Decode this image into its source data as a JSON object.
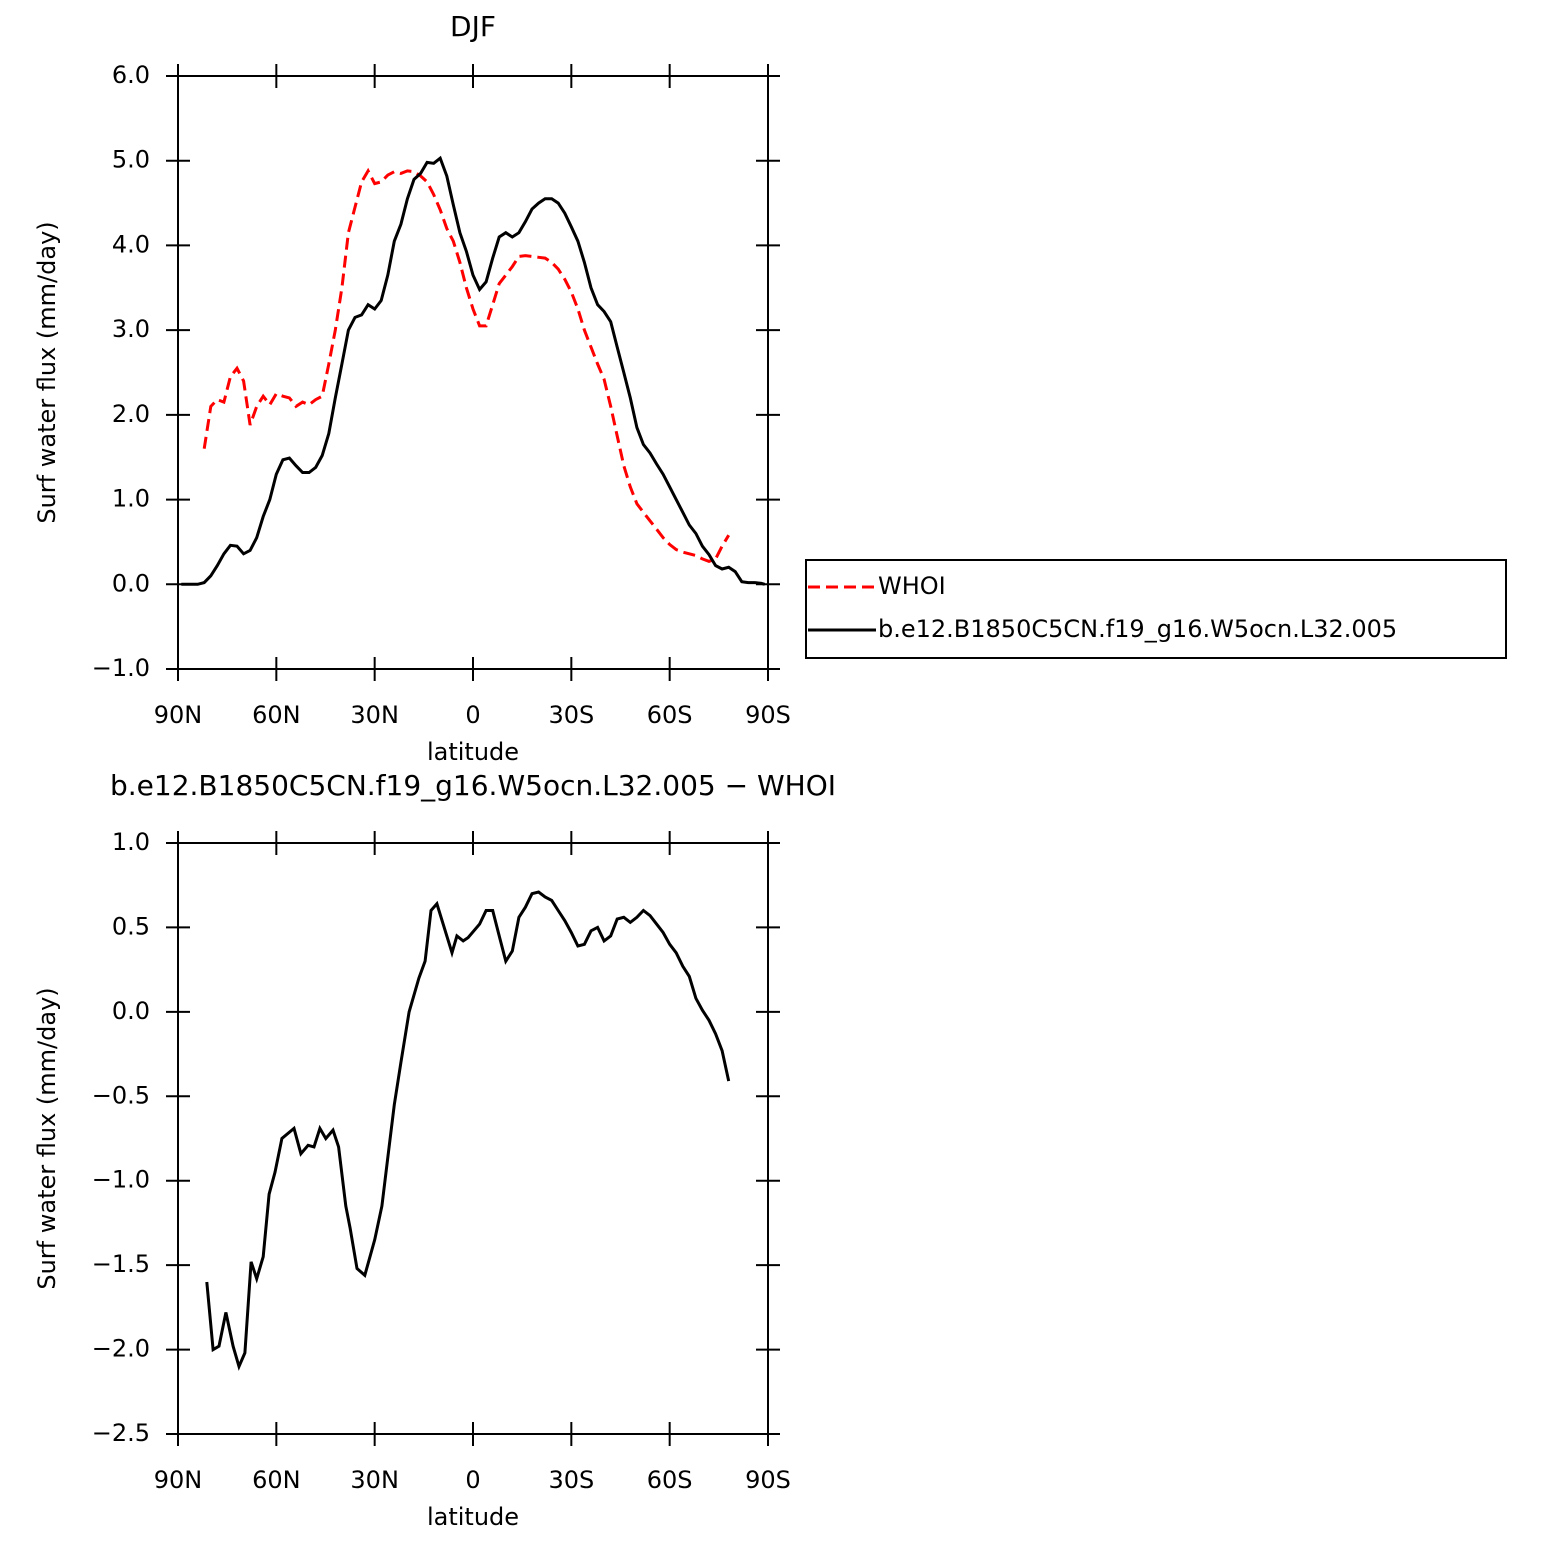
{
  "chart_data": [
    {
      "type": "line",
      "title": "DJF",
      "x_label": "latitude",
      "y_label": "Surf water flux (mm/day)",
      "x": [
        89,
        86,
        84,
        82,
        80,
        78,
        76,
        74,
        72,
        70,
        68,
        66,
        64,
        62,
        60,
        58,
        56,
        54,
        52,
        50,
        48,
        46,
        44,
        42,
        40,
        38,
        36,
        34,
        32,
        30,
        28,
        26,
        24,
        22,
        20,
        18,
        16,
        14,
        12,
        10,
        8,
        6,
        4,
        2,
        0,
        -2,
        -4,
        -6,
        -8,
        -10,
        -12,
        -14,
        -16,
        -18,
        -20,
        -22,
        -24,
        -26,
        -28,
        -30,
        -32,
        -34,
        -36,
        -38,
        -40,
        -42,
        -44,
        -46,
        -48,
        -50,
        -52,
        -54,
        -56,
        -58,
        -60,
        -62,
        -64,
        -66,
        -68,
        -70,
        -72,
        -74,
        -76,
        -78,
        -80,
        -82,
        -84,
        -86,
        -88,
        -89
      ],
      "xlim": [
        90,
        -90
      ],
      "xticks": [
        {
          "value": 90,
          "label": "90N"
        },
        {
          "value": 60,
          "label": "60N"
        },
        {
          "value": 30,
          "label": "30N"
        },
        0,
        {
          "value": -30,
          "label": "30S"
        },
        {
          "value": -60,
          "label": "60S"
        },
        {
          "value": -90,
          "label": "90S"
        }
      ],
      "ylim": [
        -1,
        6
      ],
      "yticks": [
        {
          "value": 6,
          "label": "6.0"
        },
        {
          "value": 5,
          "label": "5.0"
        },
        {
          "value": 4,
          "label": "4.0"
        },
        {
          "value": 3,
          "label": "3.0"
        },
        {
          "value": 2,
          "label": "2.0"
        },
        {
          "value": 1,
          "label": "1.0"
        },
        {
          "value": 0,
          "label": "0.0"
        },
        {
          "value": -1,
          "label": "−1.0"
        }
      ],
      "legend": "right",
      "series": [
        {
          "name": "WHOI",
          "color": "#ff0000",
          "dash": "dashed",
          "values": [
            null,
            null,
            null,
            1.6,
            2.1,
            2.18,
            2.15,
            2.45,
            2.55,
            2.4,
            1.88,
            2.1,
            2.22,
            2.12,
            2.25,
            2.22,
            2.2,
            2.1,
            2.15,
            2.12,
            2.18,
            2.22,
            2.6,
            3.0,
            3.5,
            4.15,
            4.45,
            4.75,
            4.88,
            4.73,
            4.75,
            4.83,
            4.87,
            4.85,
            4.88,
            4.87,
            4.82,
            4.75,
            4.6,
            4.42,
            4.2,
            4.05,
            3.8,
            3.5,
            3.25,
            3.05,
            3.05,
            3.3,
            3.55,
            3.65,
            3.75,
            3.87,
            3.88,
            3.87,
            3.86,
            3.85,
            3.8,
            3.72,
            3.6,
            3.45,
            3.25,
            3.0,
            2.8,
            2.6,
            2.42,
            2.1,
            1.75,
            1.4,
            1.15,
            0.95,
            0.85,
            0.75,
            0.65,
            0.55,
            0.47,
            0.41,
            0.38,
            0.36,
            0.34,
            0.3,
            0.27,
            0.3,
            0.45,
            0.58,
            null,
            null,
            null,
            null,
            null,
            null
          ]
        },
        {
          "name": "b.e12.B1850C5CN.f19_g16.W5ocn.L32.005",
          "color": "#000000",
          "dash": "solid",
          "values": [
            0,
            0,
            0,
            0.02,
            0.1,
            0.22,
            0.36,
            0.46,
            0.45,
            0.36,
            0.4,
            0.55,
            0.8,
            1.0,
            1.3,
            1.47,
            1.49,
            1.4,
            1.32,
            1.32,
            1.38,
            1.52,
            1.78,
            2.2,
            2.6,
            3.0,
            3.15,
            3.18,
            3.3,
            3.25,
            3.35,
            3.65,
            4.05,
            4.25,
            4.55,
            4.78,
            4.85,
            4.98,
            4.97,
            5.03,
            4.82,
            4.48,
            4.15,
            3.93,
            3.65,
            3.48,
            3.57,
            3.85,
            4.1,
            4.15,
            4.1,
            4.15,
            4.28,
            4.43,
            4.5,
            4.55,
            4.55,
            4.5,
            4.38,
            4.22,
            4.05,
            3.8,
            3.5,
            3.3,
            3.22,
            3.1,
            2.8,
            2.5,
            2.2,
            1.85,
            1.65,
            1.55,
            1.42,
            1.3,
            1.15,
            1.0,
            0.85,
            0.7,
            0.6,
            0.45,
            0.35,
            0.22,
            0.18,
            0.2,
            0.15,
            0.03,
            0.02,
            0.02,
            0.01,
            0
          ]
        }
      ]
    },
    {
      "type": "line",
      "title": "b.e12.B1850C5CN.f19_g16.W5ocn.L32.005 − WHOI",
      "x_label": "latitude",
      "y_label": "Surf water flux (mm/day)",
      "x": [
        81.2,
        79.3,
        77.5,
        75.4,
        73.2,
        71.4,
        69.6,
        67.7,
        66,
        64,
        62.2,
        60.4,
        58.3,
        54.6,
        52.5,
        50.3,
        48.5,
        46.7,
        44.9,
        42.7,
        41,
        38.8,
        37.5,
        35.4,
        33,
        30,
        27.8,
        25.6,
        24,
        22,
        19.5,
        16.5,
        14.6,
        12.8,
        11,
        8,
        6.4,
        4.9,
        3,
        1.5,
        -2,
        -4,
        -6,
        -8,
        -10,
        -12,
        -14,
        -16,
        -18,
        -20,
        -22,
        -24,
        -26,
        -28,
        -30,
        -32,
        -34,
        -36,
        -38,
        -40,
        -42,
        -44,
        -46,
        -48,
        -50,
        -52,
        -54,
        -56,
        -58,
        -60,
        -62,
        -64,
        -66,
        -68,
        -70,
        -72,
        -74,
        -76,
        -78
      ],
      "xlim": [
        90,
        -90
      ],
      "xticks": [
        {
          "value": 90,
          "label": "90N"
        },
        {
          "value": 60,
          "label": "60N"
        },
        {
          "value": 30,
          "label": "30N"
        },
        0,
        {
          "value": -30,
          "label": "30S"
        },
        {
          "value": -60,
          "label": "60S"
        },
        {
          "value": -90,
          "label": "90S"
        }
      ],
      "ylim": [
        -2.5,
        1
      ],
      "yticks": [
        {
          "value": 1,
          "label": "1.0"
        },
        0.5,
        {
          "value": 0,
          "label": "0.0"
        },
        {
          "value": -0.5,
          "label": "−0.5"
        },
        {
          "value": -1,
          "label": "−1.0"
        },
        {
          "value": -1.5,
          "label": "−1.5"
        },
        {
          "value": -2,
          "label": "−2.0"
        },
        {
          "value": -2.5,
          "label": "−2.5"
        }
      ],
      "series": [
        {
          "color": "#000000",
          "dash": "solid",
          "values": [
            -1.6,
            -2.0,
            -1.98,
            -1.78,
            -1.98,
            -2.1,
            -2.02,
            -1.48,
            -1.58,
            -1.45,
            -1.08,
            -0.95,
            -0.75,
            -0.69,
            -0.84,
            -0.79,
            -0.8,
            -0.69,
            -0.75,
            -0.7,
            -0.8,
            -1.15,
            -1.28,
            -1.52,
            -1.56,
            -1.35,
            -1.15,
            -0.8,
            -0.55,
            -0.3,
            0.0,
            0.2,
            0.3,
            0.6,
            0.64,
            0.45,
            0.35,
            0.45,
            0.42,
            0.44,
            0.52,
            0.6,
            0.6,
            0.45,
            0.3,
            0.36,
            0.56,
            0.62,
            0.7,
            0.71,
            0.68,
            0.66,
            0.6,
            0.54,
            0.47,
            0.39,
            0.4,
            0.48,
            0.5,
            0.42,
            0.45,
            0.55,
            0.56,
            0.53,
            0.56,
            0.6,
            0.57,
            0.52,
            0.47,
            0.4,
            0.35,
            0.27,
            0.21,
            0.08,
            0.01,
            -0.05,
            -0.13,
            -0.23,
            -0.41
          ]
        }
      ]
    }
  ]
}
